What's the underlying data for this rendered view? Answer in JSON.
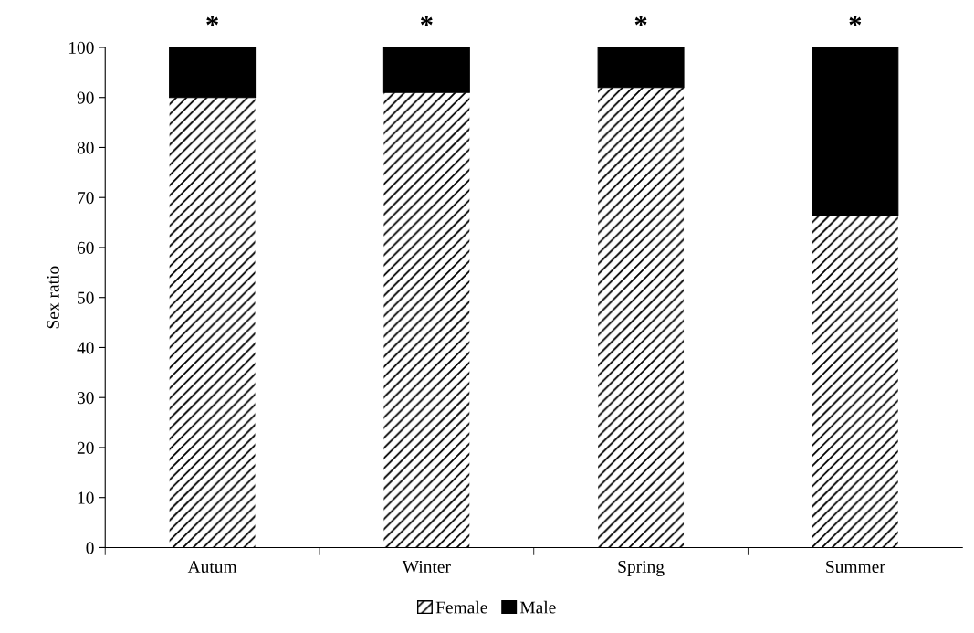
{
  "chart_data": {
    "type": "bar",
    "ylabel": "Sex ratio",
    "stacked": true,
    "categories": [
      "Autum",
      "Winter",
      "Spring",
      "Summer"
    ],
    "series": [
      {
        "name": "Female",
        "color": "#ffffff",
        "values": [
          90,
          91,
          92,
          66.5
        ]
      },
      {
        "name": "Male",
        "color": "#000000",
        "values": [
          10,
          9,
          8,
          33.5
        ]
      }
    ],
    "ylim": [
      0,
      100
    ],
    "yticks": [
      0,
      10,
      20,
      30,
      40,
      50,
      60,
      70,
      80,
      90,
      100
    ],
    "annotations": [
      "*",
      "*",
      "*",
      "*"
    ],
    "grid": false,
    "legend": "bottom"
  }
}
